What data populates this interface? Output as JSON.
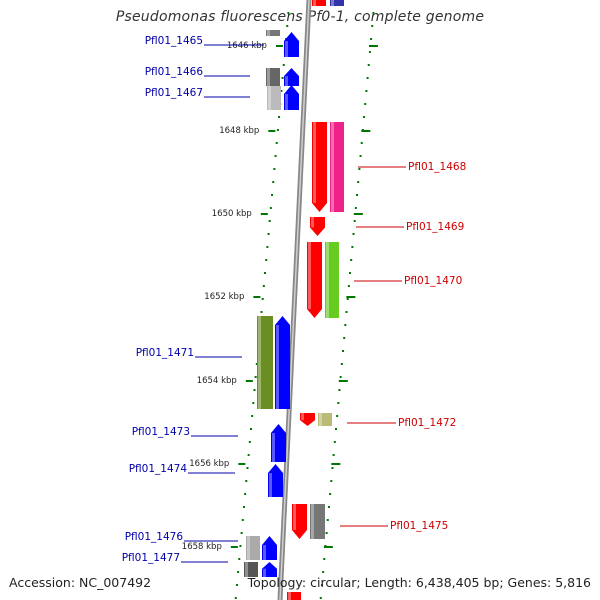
{
  "title": "Pseudomonas fluorescens Pf0-1, complete genome",
  "footer": {
    "accession": "Accession: NC_007492",
    "summary": "Topology: circular; Length: 6,438,405 bp; Genes: 5,816"
  },
  "colors": {
    "forward_label": "#0000aa",
    "reverse_label": "#cc0000",
    "tick": "#007700",
    "backbone": "#888888"
  },
  "kbp_labels": [
    {
      "text": "1646 kbp",
      "pos": 1646
    },
    {
      "text": "1648 kbp",
      "pos": 1648
    },
    {
      "text": "1650 kbp",
      "pos": 1650
    },
    {
      "text": "1652 kbp",
      "pos": 1652
    },
    {
      "text": "1654 kbp",
      "pos": 1654
    },
    {
      "text": "1656 kbp",
      "pos": 1656
    },
    {
      "text": "1658 kbp",
      "pos": 1658
    }
  ],
  "genes_forward": [
    {
      "name": "Pfl01_1465",
      "strand": "+"
    },
    {
      "name": "Pfl01_1466",
      "strand": "+"
    },
    {
      "name": "Pfl01_1467",
      "strand": "+"
    },
    {
      "name": "Pfl01_1471",
      "strand": "+"
    },
    {
      "name": "Pfl01_1473",
      "strand": "+"
    },
    {
      "name": "Pfl01_1474",
      "strand": "+"
    },
    {
      "name": "Pfl01_1476",
      "strand": "+"
    },
    {
      "name": "Pfl01_1477",
      "strand": "+"
    }
  ],
  "genes_reverse": [
    {
      "name": "Pfl01_1468",
      "strand": "-"
    },
    {
      "name": "Pfl01_1469",
      "strand": "-"
    },
    {
      "name": "Pfl01_1470",
      "strand": "-"
    },
    {
      "name": "Pfl01_1472",
      "strand": "-"
    },
    {
      "name": "Pfl01_1475",
      "strand": "-"
    }
  ]
}
